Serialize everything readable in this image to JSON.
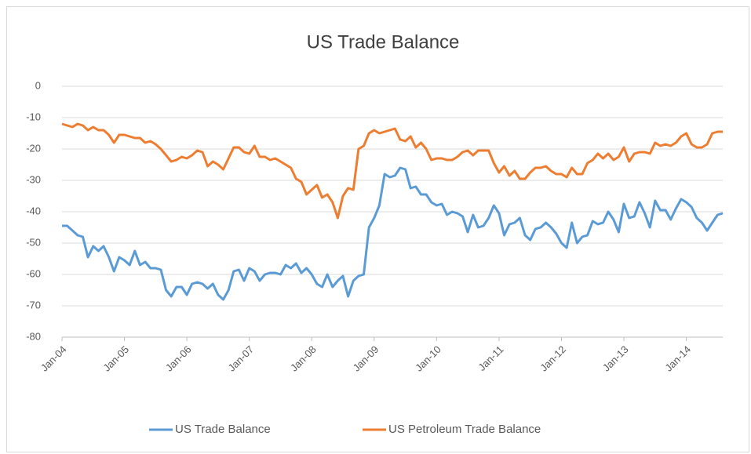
{
  "chart_data": {
    "type": "line",
    "title": "US Trade Balance",
    "categories": [
      "Jan-04",
      null,
      null,
      null,
      null,
      null,
      null,
      null,
      null,
      null,
      null,
      null,
      "Jan-05",
      null,
      null,
      null,
      null,
      null,
      null,
      null,
      null,
      null,
      null,
      null,
      "Jan-06",
      null,
      null,
      null,
      null,
      null,
      null,
      null,
      null,
      null,
      null,
      null,
      "Jan-07",
      null,
      null,
      null,
      null,
      null,
      null,
      null,
      null,
      null,
      null,
      null,
      "Jan-08",
      null,
      null,
      null,
      null,
      null,
      null,
      null,
      null,
      null,
      null,
      null,
      "Jan-09",
      null,
      null,
      null,
      null,
      null,
      null,
      null,
      null,
      null,
      null,
      null,
      "Jan-10",
      null,
      null,
      null,
      null,
      null,
      null,
      null,
      null,
      null,
      null,
      null,
      "Jan-11",
      null,
      null,
      null,
      null,
      null,
      null,
      null,
      null,
      null,
      null,
      null,
      "Jan-12",
      null,
      null,
      null,
      null,
      null,
      null,
      null,
      null,
      null,
      null,
      null,
      "Jan-13",
      null,
      null,
      null,
      null,
      null,
      null,
      null,
      null,
      null,
      null,
      null,
      "Jan-14",
      null,
      null,
      null,
      null,
      null,
      null,
      null
    ],
    "series": [
      {
        "name": "US Trade Balance",
        "color": "#5b9bd5",
        "values": [
          -44.5,
          -44.5,
          -46,
          -47.5,
          -48,
          -54.5,
          -51,
          -52.5,
          -51,
          -54.5,
          -59,
          -54.5,
          -55.5,
          -57,
          -52.5,
          -57,
          -56,
          -58,
          -58,
          -58.5,
          -65,
          -67,
          -64,
          -64,
          -66.5,
          -63,
          -62.5,
          -63,
          -64.5,
          -63,
          -66.5,
          -68,
          -65,
          -59,
          -58.5,
          -62,
          -58,
          -59,
          -62,
          -60,
          -59.5,
          -59.5,
          -60,
          -57,
          -58,
          -56.5,
          -59.5,
          -58,
          -60,
          -63,
          -64,
          -60,
          -64,
          -62,
          -60.5,
          -67,
          -62,
          -60.5,
          -60,
          -45,
          -42,
          -38,
          -28,
          -29,
          -28.5,
          -26,
          -26.5,
          -32.5,
          -32,
          -34.5,
          -34.5,
          -37,
          -38,
          -37.5,
          -41,
          -40,
          -40.5,
          -41.5,
          -46.5,
          -41,
          -45,
          -44.5,
          -42,
          -38,
          -40.5,
          -47.5,
          -44,
          -43.5,
          -42,
          -47.5,
          -49,
          -45.5,
          -45,
          -43.5,
          -45,
          -47,
          -50,
          -51.5,
          -43.5,
          -50,
          -48,
          -47.5,
          -43,
          -44,
          -43.5,
          -40,
          -42.5,
          -46.5,
          -37.5,
          -42,
          -41.5,
          -37,
          -40.5,
          -45,
          -36.5,
          -39.5,
          -39.5,
          -42.5,
          -39,
          -36,
          -37,
          -38.5,
          -42,
          -43.5,
          -46,
          -43.5,
          -41,
          -40.5
        ]
      },
      {
        "name": "US Petroleum Trade Balance",
        "color": "#ed7d31",
        "values": [
          -12,
          -12.5,
          -13,
          -12,
          -12.5,
          -14,
          -13,
          -14,
          -14,
          -15.5,
          -18,
          -15.5,
          -15.5,
          -16,
          -16.5,
          -16.5,
          -18,
          -17.5,
          -18.5,
          -20,
          -22,
          -24,
          -23.5,
          -22.5,
          -23,
          -22,
          -20.5,
          -21,
          -25.5,
          -24,
          -25,
          -26.5,
          -23,
          -19.5,
          -19.5,
          -21,
          -21.5,
          -19,
          -22.5,
          -22.5,
          -23.5,
          -23,
          -24,
          -25,
          -26,
          -29.5,
          -30.5,
          -34.5,
          -33,
          -31.5,
          -35.5,
          -34.5,
          -37,
          -42,
          -35,
          -32.5,
          -33,
          -20,
          -19,
          -15,
          -14,
          -15,
          -14.5,
          -14,
          -13.5,
          -17,
          -17.5,
          -16,
          -19.5,
          -18,
          -20,
          -23.5,
          -23,
          -23,
          -23.5,
          -23.5,
          -22.5,
          -21,
          -20.5,
          -22,
          -20.5,
          -20.5,
          -20.5,
          -24.5,
          -27.5,
          -25.5,
          -28.5,
          -27,
          -29.5,
          -29.5,
          -27.5,
          -26,
          -26,
          -25.5,
          -27,
          -28,
          -28,
          -29,
          -26,
          -28,
          -28,
          -24.5,
          -23.5,
          -21.5,
          -23,
          -21.5,
          -23.5,
          -22.5,
          -19.5,
          -24,
          -21.5,
          -21,
          -21,
          -21.5,
          -18,
          -19,
          -18.5,
          -19,
          -18,
          -16,
          -15,
          -18.5,
          -19.5,
          -19.5,
          -18.5,
          -15,
          -14.5,
          -14.5
        ]
      }
    ],
    "ylim": [
      -80,
      0
    ],
    "yticks": [
      0,
      -10,
      -20,
      -30,
      -40,
      -50,
      -60,
      -70,
      -80
    ],
    "grid": true,
    "legend": "bottom"
  }
}
